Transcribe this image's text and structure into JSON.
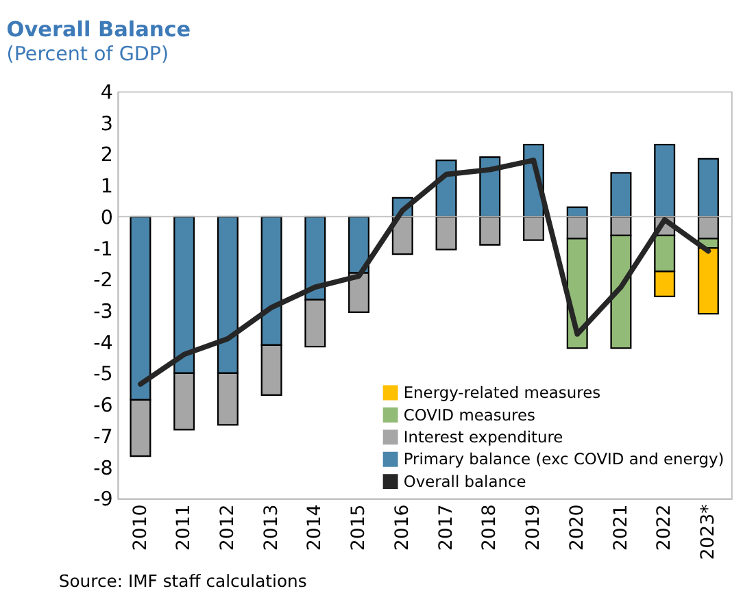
{
  "chart_data": {
    "type": "bar",
    "title": "Overall Balance",
    "subtitle": "(Percent of GDP)",
    "categories": [
      "2010",
      "2011",
      "2012",
      "2013",
      "2014",
      "2015",
      "2016",
      "2017",
      "2018",
      "2019",
      "2020",
      "2021",
      "2022",
      "2023*"
    ],
    "stacked": true,
    "series": [
      {
        "name": "Primary balance (exc COVID and energy)",
        "color": "#4a86ab",
        "values": [
          -5.85,
          -5.0,
          -5.0,
          -4.1,
          -2.65,
          -1.8,
          0.6,
          1.8,
          1.9,
          2.3,
          0.3,
          1.4,
          2.3,
          1.85
        ]
      },
      {
        "name": "Interest expenditure",
        "color": "#a6a6a6",
        "values": [
          -1.8,
          -1.8,
          -1.65,
          -1.6,
          -1.5,
          -1.25,
          -1.2,
          -1.05,
          -0.9,
          -0.75,
          -0.7,
          -0.6,
          -0.6,
          -0.7
        ]
      },
      {
        "name": "COVID measures",
        "color": "#93bb78",
        "values": [
          null,
          null,
          null,
          null,
          null,
          null,
          null,
          null,
          null,
          null,
          -3.5,
          -3.6,
          -1.15,
          -0.3
        ]
      },
      {
        "name": "Energy-related measures",
        "color": "#ffc000",
        "values": [
          null,
          null,
          null,
          null,
          null,
          null,
          null,
          null,
          null,
          null,
          null,
          null,
          -0.8,
          -2.1
        ]
      },
      {
        "name": "Overall balance",
        "color": "#262626",
        "type": "line",
        "values": [
          -5.35,
          -4.4,
          -3.9,
          -2.9,
          -2.25,
          -1.9,
          0.2,
          1.35,
          1.5,
          1.8,
          -3.75,
          -2.25,
          -0.1,
          -1.1
        ]
      }
    ],
    "ylim": [
      -9,
      4
    ],
    "yticks": [
      -9,
      -8,
      -7,
      -6,
      -5,
      -4,
      -3,
      -2,
      -1,
      0,
      1,
      2,
      3,
      4
    ],
    "grid": false,
    "legend": "bottom right",
    "ref_lines": [
      {
        "axis": "y",
        "value": 0,
        "color": "#bfbfbf"
      }
    ],
    "annotations": [
      "Source: IMF staff calculations"
    ]
  }
}
